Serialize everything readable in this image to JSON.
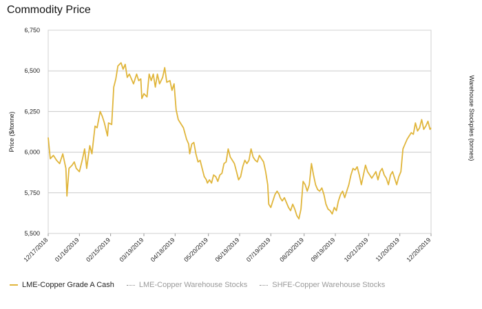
{
  "title": "Commodity Price",
  "legend": [
    {
      "label": "LME-Copper Grade A Cash",
      "style": "solid",
      "color": "#e0b53a"
    },
    {
      "label": "LME-Copper Warehouse Stocks",
      "style": "dotted",
      "color": "#888888"
    },
    {
      "label": "SHFE-Copper Warehouse Stocks",
      "style": "dotted",
      "color": "#888888"
    }
  ],
  "chart_data": {
    "type": "line",
    "title": "Commodity Price",
    "ylabel": "Price ($/tonne)",
    "y2label": "Warehouse Stockpiles (tonnes)",
    "ylim": [
      5500,
      6750
    ],
    "yticks": [
      5500,
      5750,
      6000,
      6250,
      6500,
      6750
    ],
    "ytick_labels": [
      "5,500",
      "5,750",
      "6,000",
      "6,250",
      "6,500",
      "6,750"
    ],
    "xlim_day": [
      0,
      368
    ],
    "xticks": [
      {
        "label": "12/17/2018",
        "day": 0
      },
      {
        "label": "01/16/2019",
        "day": 30
      },
      {
        "label": "02/15/2019",
        "day": 60
      },
      {
        "label": "03/19/2019",
        "day": 92
      },
      {
        "label": "04/18/2019",
        "day": 122
      },
      {
        "label": "05/20/2019",
        "day": 154
      },
      {
        "label": "06/19/2019",
        "day": 184
      },
      {
        "label": "07/19/2019",
        "day": 214
      },
      {
        "label": "08/20/2019",
        "day": 246
      },
      {
        "label": "09/19/2019",
        "day": 276
      },
      {
        "label": "10/21/2019",
        "day": 308
      },
      {
        "label": "11/20/2019",
        "day": 338
      },
      {
        "label": "12/20/2019",
        "day": 368
      }
    ],
    "grid": true,
    "series": [
      {
        "name": "LME-Copper Grade A Cash",
        "color": "#e0b53a",
        "points": [
          [
            0,
            6090
          ],
          [
            2,
            5960
          ],
          [
            5,
            5980
          ],
          [
            8,
            5950
          ],
          [
            11,
            5930
          ],
          [
            14,
            5990
          ],
          [
            17,
            5900
          ],
          [
            18,
            5730
          ],
          [
            20,
            5900
          ],
          [
            23,
            5920
          ],
          [
            25,
            5940
          ],
          [
            27,
            5900
          ],
          [
            30,
            5880
          ],
          [
            33,
            5960
          ],
          [
            35,
            6020
          ],
          [
            37,
            5900
          ],
          [
            40,
            6040
          ],
          [
            42,
            5990
          ],
          [
            45,
            6160
          ],
          [
            47,
            6150
          ],
          [
            50,
            6250
          ],
          [
            52,
            6220
          ],
          [
            54,
            6180
          ],
          [
            57,
            6100
          ],
          [
            58,
            6180
          ],
          [
            61,
            6170
          ],
          [
            63,
            6400
          ],
          [
            65,
            6450
          ],
          [
            67,
            6530
          ],
          [
            70,
            6550
          ],
          [
            72,
            6510
          ],
          [
            74,
            6540
          ],
          [
            76,
            6460
          ],
          [
            78,
            6480
          ],
          [
            80,
            6450
          ],
          [
            82,
            6420
          ],
          [
            85,
            6480
          ],
          [
            87,
            6440
          ],
          [
            89,
            6450
          ],
          [
            90,
            6330
          ],
          [
            92,
            6360
          ],
          [
            95,
            6340
          ],
          [
            97,
            6480
          ],
          [
            99,
            6440
          ],
          [
            101,
            6480
          ],
          [
            103,
            6400
          ],
          [
            105,
            6480
          ],
          [
            107,
            6420
          ],
          [
            110,
            6460
          ],
          [
            112,
            6520
          ],
          [
            114,
            6430
          ],
          [
            117,
            6440
          ],
          [
            119,
            6380
          ],
          [
            121,
            6420
          ],
          [
            123,
            6260
          ],
          [
            125,
            6200
          ],
          [
            127,
            6180
          ],
          [
            130,
            6150
          ],
          [
            133,
            6080
          ],
          [
            135,
            6050
          ],
          [
            136,
            5990
          ],
          [
            138,
            6050
          ],
          [
            140,
            6060
          ],
          [
            142,
            5990
          ],
          [
            144,
            5940
          ],
          [
            146,
            5950
          ],
          [
            148,
            5900
          ],
          [
            150,
            5850
          ],
          [
            152,
            5830
          ],
          [
            153,
            5810
          ],
          [
            155,
            5830
          ],
          [
            157,
            5810
          ],
          [
            159,
            5860
          ],
          [
            161,
            5850
          ],
          [
            163,
            5820
          ],
          [
            165,
            5860
          ],
          [
            167,
            5870
          ],
          [
            169,
            5930
          ],
          [
            171,
            5940
          ],
          [
            173,
            6020
          ],
          [
            175,
            5970
          ],
          [
            177,
            5950
          ],
          [
            179,
            5930
          ],
          [
            181,
            5880
          ],
          [
            183,
            5830
          ],
          [
            185,
            5850
          ],
          [
            187,
            5910
          ],
          [
            189,
            5950
          ],
          [
            191,
            5930
          ],
          [
            193,
            5950
          ],
          [
            195,
            6020
          ],
          [
            197,
            5970
          ],
          [
            199,
            5950
          ],
          [
            201,
            5940
          ],
          [
            203,
            5980
          ],
          [
            205,
            5960
          ],
          [
            207,
            5940
          ],
          [
            209,
            5880
          ],
          [
            211,
            5800
          ],
          [
            212,
            5680
          ],
          [
            214,
            5660
          ],
          [
            216,
            5700
          ],
          [
            218,
            5740
          ],
          [
            220,
            5760
          ],
          [
            222,
            5740
          ],
          [
            223,
            5720
          ],
          [
            225,
            5700
          ],
          [
            227,
            5720
          ],
          [
            229,
            5690
          ],
          [
            231,
            5660
          ],
          [
            233,
            5640
          ],
          [
            235,
            5680
          ],
          [
            237,
            5650
          ],
          [
            239,
            5610
          ],
          [
            241,
            5590
          ],
          [
            243,
            5650
          ],
          [
            245,
            5820
          ],
          [
            247,
            5800
          ],
          [
            249,
            5760
          ],
          [
            251,
            5800
          ],
          [
            253,
            5930
          ],
          [
            255,
            5860
          ],
          [
            257,
            5800
          ],
          [
            259,
            5770
          ],
          [
            261,
            5760
          ],
          [
            263,
            5780
          ],
          [
            265,
            5740
          ],
          [
            267,
            5680
          ],
          [
            269,
            5650
          ],
          [
            271,
            5640
          ],
          [
            273,
            5620
          ],
          [
            275,
            5660
          ],
          [
            277,
            5640
          ],
          [
            279,
            5700
          ],
          [
            281,
            5740
          ],
          [
            283,
            5760
          ],
          [
            285,
            5720
          ],
          [
            287,
            5760
          ],
          [
            289,
            5800
          ],
          [
            291,
            5860
          ],
          [
            293,
            5900
          ],
          [
            295,
            5890
          ],
          [
            297,
            5910
          ],
          [
            299,
            5860
          ],
          [
            301,
            5800
          ],
          [
            303,
            5860
          ],
          [
            305,
            5920
          ],
          [
            307,
            5880
          ],
          [
            309,
            5860
          ],
          [
            311,
            5840
          ],
          [
            313,
            5860
          ],
          [
            315,
            5880
          ],
          [
            317,
            5830
          ],
          [
            319,
            5880
          ],
          [
            321,
            5900
          ],
          [
            323,
            5860
          ],
          [
            325,
            5840
          ],
          [
            327,
            5800
          ],
          [
            329,
            5860
          ],
          [
            331,
            5880
          ],
          [
            333,
            5840
          ],
          [
            335,
            5800
          ],
          [
            337,
            5850
          ],
          [
            339,
            5880
          ],
          [
            341,
            6020
          ],
          [
            343,
            6050
          ],
          [
            345,
            6080
          ],
          [
            347,
            6100
          ],
          [
            349,
            6120
          ],
          [
            351,
            6110
          ],
          [
            353,
            6180
          ],
          [
            355,
            6130
          ],
          [
            357,
            6150
          ],
          [
            359,
            6200
          ],
          [
            361,
            6140
          ],
          [
            363,
            6160
          ],
          [
            365,
            6190
          ],
          [
            367,
            6140
          ],
          [
            368,
            6150
          ]
        ]
      }
    ]
  }
}
